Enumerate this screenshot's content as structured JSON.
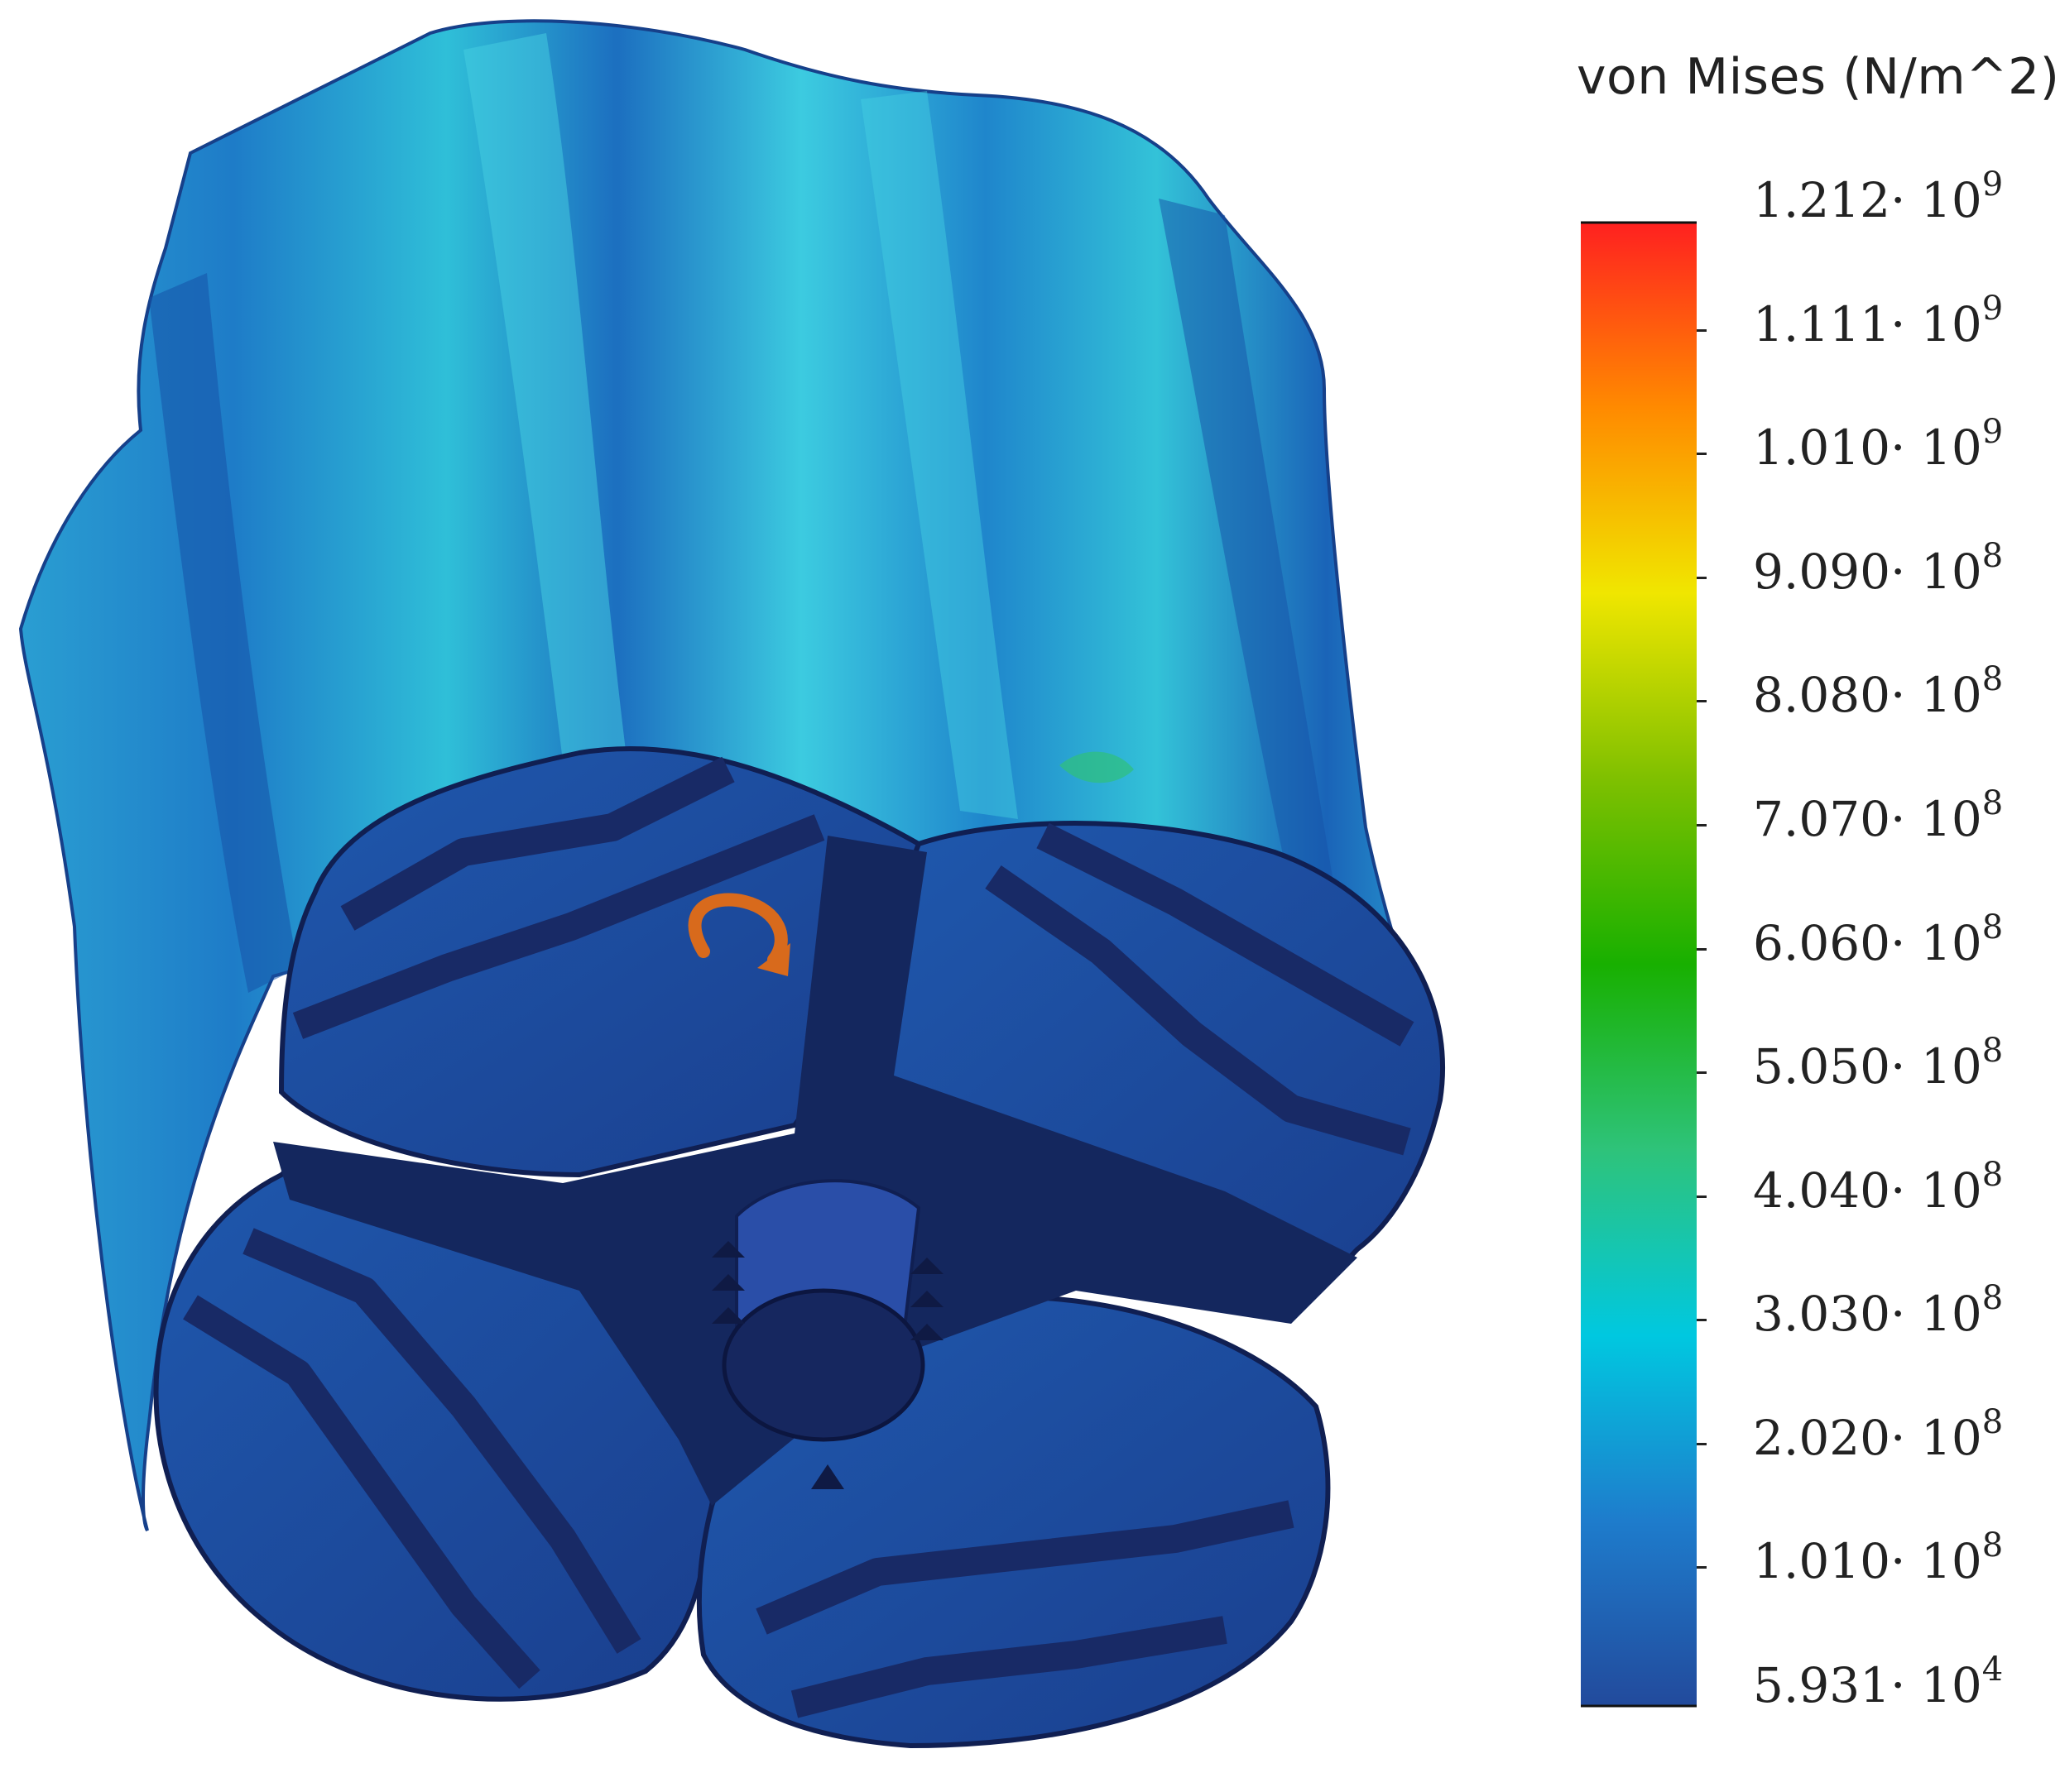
{
  "legend": {
    "title": "von Mises (N/m^2)",
    "colors": [
      "#ff2020",
      "#ff8a00",
      "#f0e600",
      "#7fc000",
      "#18b000",
      "#2ec37a",
      "#00c8e0",
      "#1e7ccc",
      "#224a9c"
    ],
    "ticks": [
      {
        "mantissa": "1.212",
        "base": "10",
        "exp": "9"
      },
      {
        "mantissa": "1.111",
        "base": "10",
        "exp": "9"
      },
      {
        "mantissa": "1.010",
        "base": "10",
        "exp": "9"
      },
      {
        "mantissa": "9.090",
        "base": "10",
        "exp": "8"
      },
      {
        "mantissa": "8.080",
        "base": "10",
        "exp": "8"
      },
      {
        "mantissa": "7.070",
        "base": "10",
        "exp": "8"
      },
      {
        "mantissa": "6.060",
        "base": "10",
        "exp": "8"
      },
      {
        "mantissa": "5.050",
        "base": "10",
        "exp": "8"
      },
      {
        "mantissa": "4.040",
        "base": "10",
        "exp": "8"
      },
      {
        "mantissa": "3.030",
        "base": "10",
        "exp": "8"
      },
      {
        "mantissa": "2.020",
        "base": "10",
        "exp": "8"
      },
      {
        "mantissa": "1.010",
        "base": "10",
        "exp": "8"
      },
      {
        "mantissa": "5.931",
        "base": "10",
        "exp": "4"
      }
    ]
  },
  "model": {
    "surface_colors": {
      "light": "#2fc6d8",
      "mid": "#1a86c8",
      "deep": "#1b4e9e",
      "dark": "#14275e",
      "band": "#1b2d6a",
      "accent": "#d86a1c"
    },
    "icons": [
      "rotation-arrow-icon",
      "fixture-marker-icon"
    ]
  }
}
